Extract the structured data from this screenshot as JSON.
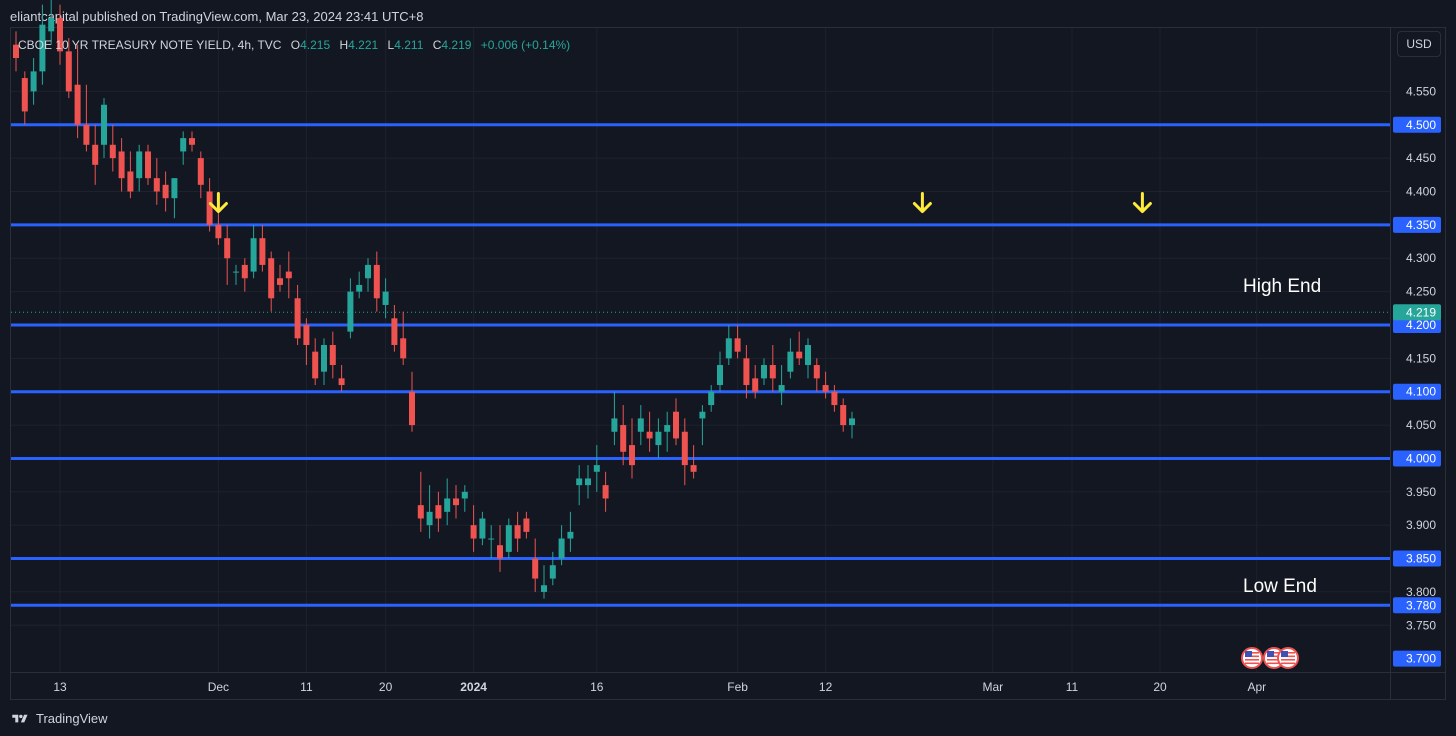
{
  "header": {
    "published": "eliantcapital published on TradingView.com, Mar 23, 2024 23:41 UTC+8"
  },
  "footer": {
    "brand": "TradingView",
    "logo_icon": "tradingview-logo-icon"
  },
  "currency_button": "USD",
  "colors": {
    "background": "#131722",
    "up": "#26a69a",
    "down": "#ef5350",
    "level_line": "#2962ff",
    "arrow": "#ffeb3b",
    "grid": "#1e222d"
  },
  "chart_data": {
    "type": "candlestick",
    "legend": {
      "symbol": "CBOE 10 YR TREASURY NOTE YIELD, 4h, TVC",
      "o_label": "O",
      "o": "4.215",
      "h_label": "H",
      "h": "4.221",
      "l_label": "L",
      "l": "4.211",
      "c_label": "C",
      "c": "4.219",
      "change": "+0.006 (+0.14%)"
    },
    "price_axis": {
      "ylim": [
        3.68,
        4.645
      ],
      "ticks": [
        "4.550",
        "4.450",
        "4.400",
        "4.300",
        "4.250",
        "4.150",
        "4.050",
        "3.950",
        "3.900",
        "3.800",
        "3.750"
      ]
    },
    "time_axis": {
      "labels": [
        {
          "label": "13",
          "idx": 5
        },
        {
          "label": "Dec",
          "idx": 23
        },
        {
          "label": "11",
          "idx": 33
        },
        {
          "label": "20",
          "idx": 42
        },
        {
          "label": "2024",
          "idx": 52,
          "bold": true
        },
        {
          "label": "16",
          "idx": 66
        },
        {
          "label": "Feb",
          "idx": 82
        },
        {
          "label": "12",
          "idx": 92
        },
        {
          "label": "Mar",
          "idx": 111
        },
        {
          "label": "11",
          "idx": 120
        },
        {
          "label": "20",
          "idx": 130
        },
        {
          "label": "Apr",
          "idx": 141
        }
      ]
    },
    "levels": [
      {
        "price": 4.5,
        "label": "4.500"
      },
      {
        "price": 4.35,
        "label": "4.350"
      },
      {
        "price": 4.2,
        "label": "4.200"
      },
      {
        "price": 4.1,
        "label": "4.100"
      },
      {
        "price": 4.0,
        "label": "4.000"
      },
      {
        "price": 3.85,
        "label": "3.850"
      },
      {
        "price": 3.78,
        "label": "3.780"
      }
    ],
    "extra_tags": [
      {
        "price": 3.7,
        "label": "3.700"
      }
    ],
    "last_price": {
      "price": 4.219,
      "label": "4.219"
    },
    "annotations": [
      {
        "text": "High End",
        "price": 4.26
      },
      {
        "text": "Low End",
        "price": 3.81
      }
    ],
    "arrows": [
      {
        "idx": 23,
        "price": 4.37
      },
      {
        "idx": 103,
        "price": 4.37
      },
      {
        "idx": 128,
        "price": 4.37
      }
    ],
    "flags": [
      "us-flag-icon",
      "us-flag-icon",
      "us-flag-icon"
    ],
    "candles": [
      [
        4.62,
        4.64,
        4.58,
        4.6
      ],
      [
        4.57,
        4.58,
        4.5,
        4.52
      ],
      [
        4.55,
        4.6,
        4.53,
        4.58
      ],
      [
        4.58,
        4.68,
        4.56,
        4.65
      ],
      [
        4.64,
        4.69,
        4.62,
        4.66
      ],
      [
        4.66,
        4.68,
        4.59,
        4.61
      ],
      [
        4.61,
        4.63,
        4.54,
        4.55
      ],
      [
        4.56,
        4.62,
        4.48,
        4.5
      ],
      [
        4.5,
        4.56,
        4.46,
        4.47
      ],
      [
        4.47,
        4.5,
        4.41,
        4.44
      ],
      [
        4.47,
        4.54,
        4.45,
        4.53
      ],
      [
        4.47,
        4.5,
        4.43,
        4.45
      ],
      [
        4.46,
        4.48,
        4.4,
        4.42
      ],
      [
        4.43,
        4.46,
        4.39,
        4.4
      ],
      [
        4.42,
        4.47,
        4.4,
        4.46
      ],
      [
        4.46,
        4.47,
        4.41,
        4.42
      ],
      [
        4.42,
        4.45,
        4.38,
        4.4
      ],
      [
        4.41,
        4.43,
        4.37,
        4.39
      ],
      [
        4.39,
        4.42,
        4.36,
        4.42
      ],
      [
        4.46,
        4.49,
        4.44,
        4.48
      ],
      [
        4.48,
        4.49,
        4.46,
        4.47
      ],
      [
        4.45,
        4.46,
        4.39,
        4.41
      ],
      [
        4.4,
        4.42,
        4.34,
        4.35
      ],
      [
        4.35,
        4.38,
        4.32,
        4.33
      ],
      [
        4.33,
        4.35,
        4.26,
        4.3
      ],
      [
        4.28,
        4.29,
        4.26,
        4.28
      ],
      [
        4.29,
        4.3,
        4.25,
        4.27
      ],
      [
        4.28,
        4.35,
        4.27,
        4.33
      ],
      [
        4.33,
        4.35,
        4.28,
        4.29
      ],
      [
        4.3,
        4.31,
        4.22,
        4.24
      ],
      [
        4.27,
        4.29,
        4.25,
        4.26
      ],
      [
        4.28,
        4.31,
        4.24,
        4.27
      ],
      [
        4.24,
        4.26,
        4.17,
        4.18
      ],
      [
        4.2,
        4.21,
        4.14,
        4.17
      ],
      [
        4.16,
        4.18,
        4.11,
        4.12
      ],
      [
        4.13,
        4.18,
        4.11,
        4.17
      ],
      [
        4.17,
        4.19,
        4.12,
        4.14
      ],
      [
        4.12,
        4.14,
        4.1,
        4.11
      ],
      [
        4.19,
        4.27,
        4.18,
        4.25
      ],
      [
        4.25,
        4.28,
        4.24,
        4.26
      ],
      [
        4.27,
        4.3,
        4.25,
        4.29
      ],
      [
        4.29,
        4.31,
        4.22,
        4.24
      ],
      [
        4.23,
        4.27,
        4.21,
        4.25
      ],
      [
        4.21,
        4.23,
        4.16,
        4.17
      ],
      [
        4.18,
        4.22,
        4.14,
        4.15
      ],
      [
        4.1,
        4.13,
        4.04,
        4.05
      ],
      [
        3.93,
        3.98,
        3.89,
        3.91
      ],
      [
        3.9,
        3.96,
        3.88,
        3.92
      ],
      [
        3.93,
        3.95,
        3.89,
        3.91
      ],
      [
        3.92,
        3.97,
        3.9,
        3.94
      ],
      [
        3.94,
        3.96,
        3.91,
        3.93
      ],
      [
        3.94,
        3.96,
        3.92,
        3.95
      ],
      [
        3.9,
        3.93,
        3.86,
        3.88
      ],
      [
        3.88,
        3.92,
        3.87,
        3.91
      ],
      [
        3.88,
        3.9,
        3.85,
        3.88
      ],
      [
        3.87,
        3.9,
        3.83,
        3.85
      ],
      [
        3.86,
        3.91,
        3.85,
        3.9
      ],
      [
        3.9,
        3.92,
        3.86,
        3.88
      ],
      [
        3.91,
        3.92,
        3.88,
        3.89
      ],
      [
        3.85,
        3.88,
        3.8,
        3.82
      ],
      [
        3.8,
        3.84,
        3.79,
        3.81
      ],
      [
        3.82,
        3.86,
        3.81,
        3.84
      ],
      [
        3.85,
        3.9,
        3.84,
        3.88
      ],
      [
        3.88,
        3.92,
        3.86,
        3.89
      ],
      [
        3.96,
        3.99,
        3.93,
        3.97
      ],
      [
        3.96,
        3.99,
        3.94,
        3.97
      ],
      [
        3.98,
        4.02,
        3.95,
        3.99
      ],
      [
        3.96,
        3.98,
        3.92,
        3.94
      ],
      [
        4.04,
        4.1,
        4.02,
        4.06
      ],
      [
        4.05,
        4.08,
        3.99,
        4.01
      ],
      [
        4.02,
        4.06,
        3.97,
        3.99
      ],
      [
        4.04,
        4.08,
        4.02,
        4.06
      ],
      [
        4.04,
        4.07,
        4.01,
        4.03
      ],
      [
        4.02,
        4.06,
        4.0,
        4.04
      ],
      [
        4.04,
        4.07,
        4.01,
        4.05
      ],
      [
        4.07,
        4.09,
        4.02,
        4.03
      ],
      [
        4.04,
        4.06,
        3.96,
        3.99
      ],
      [
        3.99,
        4.02,
        3.97,
        3.98
      ],
      [
        4.06,
        4.08,
        4.02,
        4.07
      ],
      [
        4.08,
        4.11,
        4.07,
        4.1
      ],
      [
        4.11,
        4.16,
        4.1,
        4.14
      ],
      [
        4.15,
        4.2,
        4.14,
        4.18
      ],
      [
        4.18,
        4.2,
        4.15,
        4.16
      ],
      [
        4.15,
        4.17,
        4.09,
        4.11
      ],
      [
        4.12,
        4.14,
        4.09,
        4.1
      ],
      [
        4.12,
        4.15,
        4.11,
        4.14
      ],
      [
        4.14,
        4.17,
        4.1,
        4.12
      ],
      [
        4.1,
        4.14,
        4.08,
        4.11
      ],
      [
        4.13,
        4.18,
        4.12,
        4.16
      ],
      [
        4.16,
        4.19,
        4.14,
        4.15
      ],
      [
        4.14,
        4.18,
        4.12,
        4.17
      ],
      [
        4.14,
        4.15,
        4.1,
        4.12
      ],
      [
        4.11,
        4.13,
        4.09,
        4.1
      ],
      [
        4.1,
        4.11,
        4.07,
        4.08
      ],
      [
        4.08,
        4.09,
        4.04,
        4.05
      ],
      [
        4.05,
        4.07,
        4.03,
        4.06
      ]
    ]
  }
}
